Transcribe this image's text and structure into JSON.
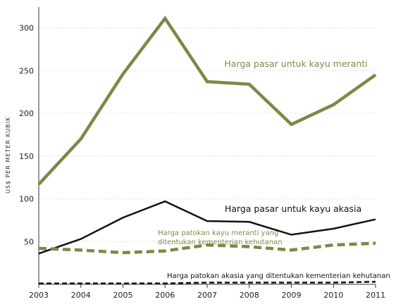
{
  "chart_data": {
    "type": "line",
    "ylabel": "US$ PER METER KUBIK",
    "xlabel": "",
    "title": "",
    "x": [
      "2003",
      "2004",
      "2005",
      "2006",
      "2007",
      "2008",
      "2009",
      "2010",
      "2011"
    ],
    "xlim": [
      2003,
      2011
    ],
    "ylim": [
      0,
      320
    ],
    "yticks": [
      50,
      100,
      150,
      200,
      250,
      300
    ],
    "grid": true,
    "series": [
      {
        "name": "Harga pasar untuk kayu meranti",
        "label_lines": [
          "Harga pasar untuk kayu meranti"
        ],
        "values": [
          117,
          170,
          246,
          311,
          237,
          234,
          187,
          210,
          245
        ],
        "color": "#7a8a45",
        "style": "solid-thick"
      },
      {
        "name": "Harga pasar untuk kayu akasia",
        "label_lines": [
          "Harga pasar untuk kayu akasia"
        ],
        "values": [
          36,
          53,
          78,
          97,
          74,
          73,
          58,
          65,
          76
        ],
        "color": "#111111",
        "style": "solid"
      },
      {
        "name": "Harga patokan kayu meranti yang ditentukan kementerian kehutanan",
        "label_lines": [
          "Harga patokan kayu meranti yang",
          "ditentukan kementerian kehutanan"
        ],
        "values": [
          42,
          40,
          37,
          39,
          46,
          44,
          40,
          46,
          48
        ],
        "color": "#7a8a45",
        "style": "dashed-thick"
      },
      {
        "name": "Harga patokan akasia yang ditentukan kementerian kehutanan",
        "label_lines": [
          "Harga patokan akasia yang ditentukan kementerian kehutanan"
        ],
        "values": [
          1,
          1,
          1,
          1,
          2,
          2,
          2,
          2,
          3
        ],
        "color": "#111111",
        "style": "dashed"
      }
    ]
  }
}
